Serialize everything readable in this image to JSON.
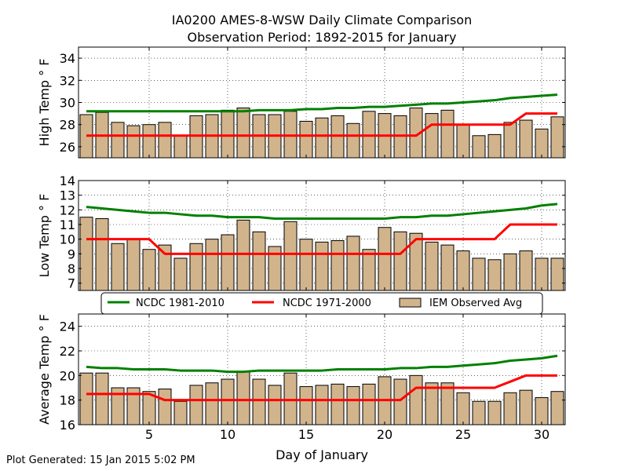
{
  "title": "IA0200 AMES-8-WSW Daily Climate Comparison",
  "subtitle": "Observation Period: 1892-2015 for January",
  "xlabel": "Day of January",
  "footer": "Plot Generated: 15 Jan 2015 5:02 PM",
  "colors": {
    "ncdc_1981": "#008000",
    "ncdc_1971": "#ff0000",
    "bar_fill": "#d2b48c",
    "bar_edge": "#000000"
  },
  "legend": {
    "placement": "between-middle-and-bottom",
    "items": [
      {
        "label": "NCDC 1981-2010",
        "kind": "line",
        "color": "#008000"
      },
      {
        "label": "NCDC 1971-2000",
        "kind": "line",
        "color": "#ff0000"
      },
      {
        "label": "IEM Observed Avg",
        "kind": "bar",
        "color": "#d2b48c"
      }
    ]
  },
  "chart_data": [
    {
      "type": "bar",
      "ylabel": "High Temp ° F",
      "ylim": [
        25,
        35
      ],
      "yticks": [
        26,
        28,
        30,
        32,
        34
      ],
      "xlim": [
        0.5,
        31.5
      ],
      "xticks": [
        5,
        10,
        15,
        20,
        25,
        30
      ],
      "grid": true,
      "x": [
        1,
        2,
        3,
        4,
        5,
        6,
        7,
        8,
        9,
        10,
        11,
        12,
        13,
        14,
        15,
        16,
        17,
        18,
        19,
        20,
        21,
        22,
        23,
        24,
        25,
        26,
        27,
        28,
        29,
        30,
        31
      ],
      "series": [
        {
          "name": "IEM Observed Avg",
          "kind": "bar",
          "values": [
            28.9,
            29.1,
            28.2,
            27.9,
            28.0,
            28.2,
            27.0,
            28.8,
            28.9,
            29.3,
            29.5,
            28.9,
            28.9,
            29.2,
            28.3,
            28.6,
            28.8,
            28.1,
            29.2,
            29.0,
            28.8,
            29.5,
            29.0,
            29.3,
            28.0,
            27.0,
            27.1,
            28.2,
            28.4,
            27.6,
            28.7
          ]
        },
        {
          "name": "NCDC 1981-2010",
          "kind": "line",
          "values": [
            29.2,
            29.2,
            29.2,
            29.2,
            29.2,
            29.2,
            29.2,
            29.2,
            29.2,
            29.2,
            29.2,
            29.3,
            29.3,
            29.3,
            29.4,
            29.4,
            29.5,
            29.5,
            29.6,
            29.6,
            29.7,
            29.8,
            29.9,
            29.9,
            30.0,
            30.1,
            30.2,
            30.4,
            30.5,
            30.6,
            30.7
          ]
        },
        {
          "name": "NCDC 1971-2000",
          "kind": "line",
          "values": [
            27,
            27,
            27,
            27,
            27,
            27,
            27,
            27,
            27,
            27,
            27,
            27,
            27,
            27,
            27,
            27,
            27,
            27,
            27,
            27,
            27,
            27,
            28,
            28,
            28,
            28,
            28,
            28,
            29,
            29,
            29
          ]
        }
      ]
    },
    {
      "type": "bar",
      "ylabel": "Low Temp ° F",
      "ylim": [
        6.5,
        14
      ],
      "yticks": [
        7,
        8,
        9,
        10,
        11,
        12,
        13,
        14
      ],
      "xlim": [
        0.5,
        31.5
      ],
      "xticks": [
        5,
        10,
        15,
        20,
        25,
        30
      ],
      "grid": true,
      "x": [
        1,
        2,
        3,
        4,
        5,
        6,
        7,
        8,
        9,
        10,
        11,
        12,
        13,
        14,
        15,
        16,
        17,
        18,
        19,
        20,
        21,
        22,
        23,
        24,
        25,
        26,
        27,
        28,
        29,
        30,
        31
      ],
      "series": [
        {
          "name": "IEM Observed Avg",
          "kind": "bar",
          "values": [
            11.5,
            11.4,
            9.7,
            10.0,
            9.3,
            9.6,
            8.7,
            9.7,
            10.0,
            10.3,
            11.3,
            10.5,
            9.5,
            11.2,
            10.0,
            9.8,
            9.9,
            10.2,
            9.3,
            10.8,
            10.5,
            10.4,
            9.8,
            9.6,
            9.2,
            8.7,
            8.6,
            9.0,
            9.2,
            8.7,
            8.7
          ]
        },
        {
          "name": "NCDC 1981-2010",
          "kind": "line",
          "values": [
            12.2,
            12.1,
            12.0,
            11.9,
            11.8,
            11.8,
            11.7,
            11.6,
            11.6,
            11.5,
            11.5,
            11.5,
            11.4,
            11.4,
            11.4,
            11.4,
            11.4,
            11.4,
            11.4,
            11.4,
            11.5,
            11.5,
            11.6,
            11.6,
            11.7,
            11.8,
            11.9,
            12.0,
            12.1,
            12.3,
            12.4
          ]
        },
        {
          "name": "NCDC 1971-2000",
          "kind": "line",
          "values": [
            10,
            10,
            10,
            10,
            10,
            9,
            9,
            9,
            9,
            9,
            9,
            9,
            9,
            9,
            9,
            9,
            9,
            9,
            9,
            9,
            9,
            10,
            10,
            10,
            10,
            10,
            10,
            11,
            11,
            11,
            11
          ]
        }
      ]
    },
    {
      "type": "bar",
      "ylabel": "Average Temp ° F",
      "ylim": [
        16,
        25
      ],
      "yticks": [
        16,
        18,
        20,
        22,
        24
      ],
      "xlim": [
        0.5,
        31.5
      ],
      "xticks": [
        5,
        10,
        15,
        20,
        25,
        30
      ],
      "grid": true,
      "x": [
        1,
        2,
        3,
        4,
        5,
        6,
        7,
        8,
        9,
        10,
        11,
        12,
        13,
        14,
        15,
        16,
        17,
        18,
        19,
        20,
        21,
        22,
        23,
        24,
        25,
        26,
        27,
        28,
        29,
        30,
        31
      ],
      "series": [
        {
          "name": "IEM Observed Avg",
          "kind": "bar",
          "values": [
            20.2,
            20.2,
            19.0,
            19.0,
            18.7,
            18.9,
            17.9,
            19.2,
            19.4,
            19.7,
            20.3,
            19.7,
            19.2,
            20.2,
            19.1,
            19.2,
            19.3,
            19.1,
            19.3,
            19.9,
            19.7,
            20.0,
            19.4,
            19.4,
            18.6,
            17.9,
            17.9,
            18.6,
            18.8,
            18.2,
            18.7
          ]
        },
        {
          "name": "NCDC 1981-2010",
          "kind": "line",
          "values": [
            20.7,
            20.6,
            20.6,
            20.5,
            20.5,
            20.5,
            20.4,
            20.4,
            20.4,
            20.3,
            20.3,
            20.4,
            20.4,
            20.4,
            20.4,
            20.4,
            20.5,
            20.5,
            20.5,
            20.5,
            20.6,
            20.6,
            20.7,
            20.7,
            20.8,
            20.9,
            21.0,
            21.2,
            21.3,
            21.4,
            21.6
          ]
        },
        {
          "name": "NCDC 1971-2000",
          "kind": "line",
          "values": [
            18.5,
            18.5,
            18.5,
            18.5,
            18.5,
            18,
            18,
            18,
            18,
            18,
            18,
            18,
            18,
            18,
            18,
            18,
            18,
            18,
            18,
            18,
            18,
            19,
            19,
            19,
            19,
            19,
            19,
            19.5,
            20,
            20,
            20
          ]
        }
      ]
    }
  ]
}
